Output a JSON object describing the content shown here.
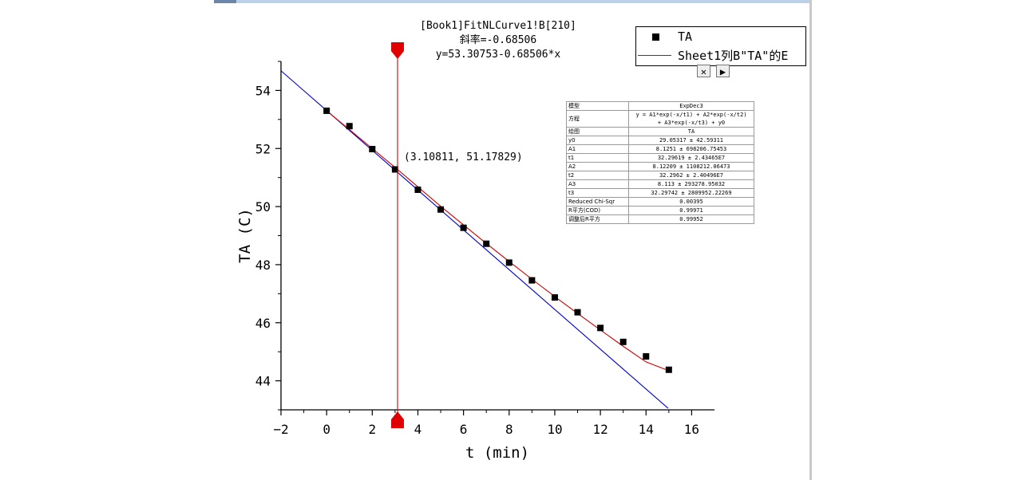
{
  "header": {
    "line1": "[Book1]FitNLCurve1!B[210]",
    "line2": "斜率=-0.68506",
    "line3": "y=53.30753-0.68506*x"
  },
  "cursor_label": "(3.10811, 51.17829)",
  "legend": {
    "items": [
      {
        "label": "TA",
        "kind": "symbol"
      },
      {
        "label": "Sheet1列B\"TA\"的E",
        "kind": "line"
      }
    ]
  },
  "toolbar": {
    "close_glyph": "✕",
    "next_glyph": "▶"
  },
  "results_table": [
    {
      "key": "模型",
      "value": "ExpDec3"
    },
    {
      "key": "方程",
      "value": "y = A1*exp(-x/t1) + A2*exp(-x/t2)\n+ A3*exp(-x/t3) + y0"
    },
    {
      "key": "绘图",
      "value": "TA"
    },
    {
      "key": "y0",
      "value": "29.05317 ± 42.59311"
    },
    {
      "key": "A1",
      "value": "8.1251 ± 698206.75453"
    },
    {
      "key": "t1",
      "value": "32.29619 ± 2.43465E7"
    },
    {
      "key": "A2",
      "value": "8.12209 ± 1108212.06473"
    },
    {
      "key": "t2",
      "value": "32.2962 ± 2.40496E7"
    },
    {
      "key": "A3",
      "value": "8.113 ± 293278.95032"
    },
    {
      "key": "t3",
      "value": "32.29742 ± 2809952.22269"
    },
    {
      "key": "Reduced Chi-Sqr",
      "value": "0.00395"
    },
    {
      "key": "R平方(COD)",
      "value": "0.99971"
    },
    {
      "key": "调整后R平方",
      "value": "0.99952"
    }
  ],
  "colors": {
    "fit_line": "#cc0000",
    "tangent_line": "#0000cc",
    "cursor_line": "#e00000",
    "points": "#000000"
  },
  "chart_data": {
    "type": "scatter",
    "xlabel": "t (min)",
    "ylabel": "TA (C)",
    "xlim": [
      -2,
      17
    ],
    "ylim": [
      43,
      55
    ],
    "x_ticks": [
      -2,
      0,
      2,
      4,
      6,
      8,
      10,
      12,
      14,
      16
    ],
    "y_ticks": [
      44,
      46,
      48,
      50,
      52,
      54
    ],
    "series": [
      {
        "name": "TA",
        "kind": "points",
        "x": [
          0,
          1,
          2,
          3,
          4,
          5,
          6,
          7,
          8,
          9,
          10,
          11,
          12,
          13,
          14,
          15
        ],
        "y": [
          53.3,
          52.77,
          51.98,
          51.28,
          50.58,
          49.9,
          49.27,
          48.72,
          48.07,
          47.46,
          46.87,
          46.36,
          45.82,
          45.34,
          44.84,
          44.38
        ]
      },
      {
        "name": "Sheet1列B\"TA\"的E",
        "kind": "fit_line",
        "x": [
          0,
          1,
          2,
          3,
          4,
          5,
          6,
          7,
          8,
          9,
          10,
          11,
          12,
          13,
          14,
          15
        ],
        "y": [
          53.3,
          52.65,
          52.0,
          51.35,
          50.68,
          50.01,
          49.37,
          48.73,
          48.11,
          47.5,
          46.9,
          46.32,
          45.75,
          45.19,
          44.65,
          44.35
        ]
      },
      {
        "name": "",
        "kind": "tangent_line",
        "slope": -0.68506,
        "intercept": 53.30753,
        "x_range": [
          -2,
          14.97
        ]
      }
    ],
    "vertical_cursor_x": 3.10811
  }
}
